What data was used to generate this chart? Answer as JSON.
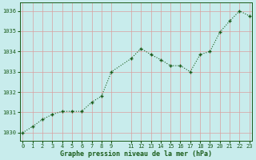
{
  "x": [
    0,
    1,
    2,
    3,
    4,
    5,
    6,
    7,
    8,
    9,
    11,
    12,
    13,
    14,
    15,
    16,
    17,
    18,
    19,
    20,
    21,
    22,
    23
  ],
  "y": [
    1030.0,
    1030.3,
    1030.65,
    1030.9,
    1031.05,
    1031.05,
    1031.05,
    1031.5,
    1031.8,
    1033.0,
    1033.65,
    1034.15,
    1033.85,
    1033.6,
    1033.3,
    1033.3,
    1033.0,
    1033.85,
    1034.0,
    1034.95,
    1035.5,
    1036.0,
    1035.75
  ],
  "line_color": "#1a5c1a",
  "marker": "+",
  "bg_color": "#c8ecec",
  "grid_color": "#b0d4d4",
  "text_color": "#1a5c1a",
  "ylabel_ticks": [
    1030,
    1031,
    1032,
    1033,
    1034,
    1035,
    1036
  ],
  "xlabel_ticks": [
    0,
    1,
    2,
    3,
    4,
    5,
    6,
    7,
    8,
    9,
    11,
    12,
    13,
    14,
    15,
    16,
    17,
    18,
    19,
    20,
    21,
    22,
    23
  ],
  "ylim": [
    1029.6,
    1036.4
  ],
  "xlim": [
    -0.3,
    23.3
  ],
  "xlabel": "Graphe pression niveau de la mer (hPa)",
  "tick_fontsize": 5.0,
  "xlabel_fontsize": 6.0
}
